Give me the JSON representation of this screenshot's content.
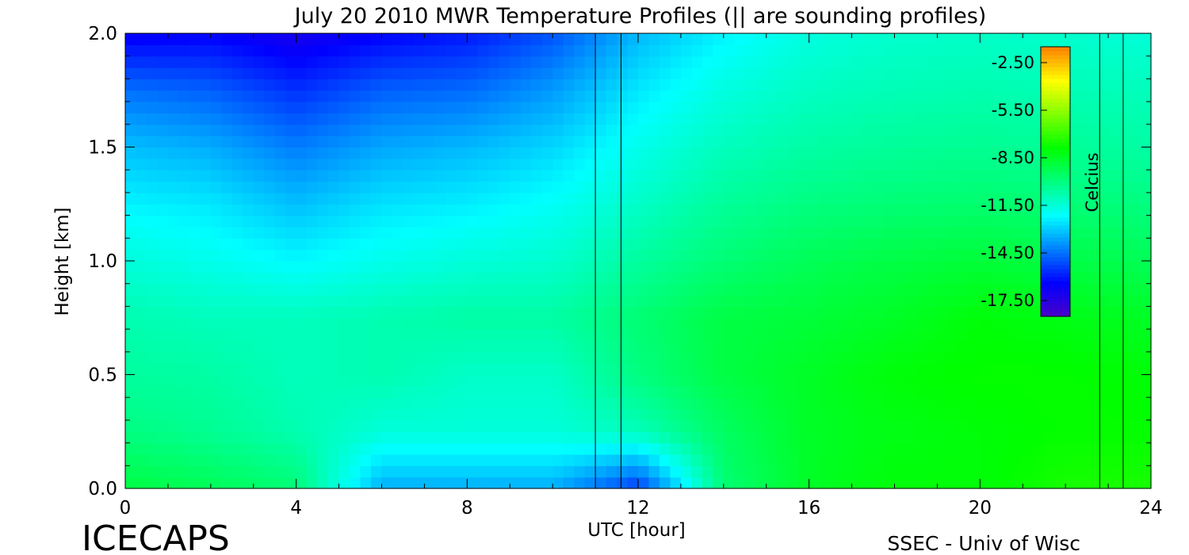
{
  "chart_data": {
    "type": "heatmap",
    "title": "July 20 2010 MWR Temperature Profiles (|| are sounding profiles)",
    "xlabel": "UTC [hour]",
    "ylabel": "Height [km]",
    "xlim": [
      0,
      24
    ],
    "ylim": [
      0,
      2.0
    ],
    "x_ticks": [
      0,
      4,
      8,
      12,
      16,
      20,
      24
    ],
    "y_ticks": [
      0.0,
      0.5,
      1.0,
      1.5,
      2.0
    ],
    "x_tick_labels": [
      "0",
      "4",
      "8",
      "12",
      "16",
      "20",
      "24"
    ],
    "y_tick_labels": [
      "0.0",
      "0.5",
      "1.0",
      "1.5",
      "2.0"
    ],
    "colorbar": {
      "label": "Celcius",
      "tick_values": [
        -2.5,
        -5.5,
        -8.5,
        -11.5,
        -14.5,
        -17.5
      ],
      "tick_labels": [
        "-2.50",
        "-5.50",
        "-8.50",
        "-11.50",
        "-14.50",
        "-17.50"
      ],
      "range": [
        -18.5,
        -1.5
      ],
      "colormap": [
        "#4b00c8",
        "#0000ff",
        "#0080ff",
        "#00ffff",
        "#00ff80",
        "#00ff00",
        "#80ff00",
        "#ffff00",
        "#ff8000"
      ]
    },
    "sounding_profiles": [
      {
        "start_hour": 11.0,
        "end_hour": 11.6
      },
      {
        "start_hour": 22.8,
        "end_hour": 23.35
      }
    ],
    "temperature_field": {
      "x_hours": [
        0,
        2,
        4,
        6,
        8,
        10,
        12,
        14,
        16,
        18,
        20,
        22,
        24
      ],
      "y_km": [
        0.0,
        0.25,
        0.5,
        0.75,
        1.0,
        1.25,
        1.5,
        1.75,
        2.0
      ],
      "values_celsius": [
        [
          -9.0,
          -9.3,
          -9.8,
          -13.5,
          -13.5,
          -13.5,
          -15.5,
          -9.8,
          -8.5,
          -8.0,
          -8.0,
          -7.5,
          -7.5
        ],
        [
          -10.0,
          -10.3,
          -10.8,
          -11.5,
          -11.5,
          -11.5,
          -11.0,
          -9.5,
          -8.5,
          -8.2,
          -8.0,
          -7.8,
          -7.8
        ],
        [
          -10.5,
          -10.6,
          -11.0,
          -10.8,
          -11.2,
          -11.2,
          -10.0,
          -9.0,
          -8.5,
          -8.0,
          -7.8,
          -7.8,
          -8.0
        ],
        [
          -10.8,
          -11.0,
          -11.0,
          -10.8,
          -10.6,
          -10.6,
          -9.8,
          -9.0,
          -8.8,
          -8.5,
          -8.0,
          -8.2,
          -8.5
        ],
        [
          -11.5,
          -11.8,
          -12.2,
          -11.8,
          -11.5,
          -11.3,
          -10.5,
          -9.8,
          -9.3,
          -9.0,
          -8.8,
          -9.0,
          -9.3
        ],
        [
          -12.3,
          -12.5,
          -13.2,
          -12.6,
          -12.4,
          -12.0,
          -11.2,
          -10.4,
          -10.0,
          -9.8,
          -9.7,
          -9.8,
          -10.0
        ],
        [
          -13.2,
          -13.5,
          -14.3,
          -13.6,
          -13.3,
          -12.8,
          -11.8,
          -11.0,
          -10.6,
          -10.4,
          -10.3,
          -10.4,
          -10.6
        ],
        [
          -14.5,
          -14.8,
          -15.6,
          -14.8,
          -14.6,
          -13.8,
          -12.5,
          -11.6,
          -11.1,
          -10.9,
          -10.8,
          -10.9,
          -11.0
        ],
        [
          -16.6,
          -16.4,
          -17.0,
          -16.4,
          -16.0,
          -15.0,
          -13.3,
          -12.3,
          -11.6,
          -11.3,
          -11.2,
          -11.3,
          -11.5
        ]
      ]
    }
  },
  "footer": {
    "left": "ICECAPS",
    "right": "SSEC - Univ of Wisc"
  }
}
